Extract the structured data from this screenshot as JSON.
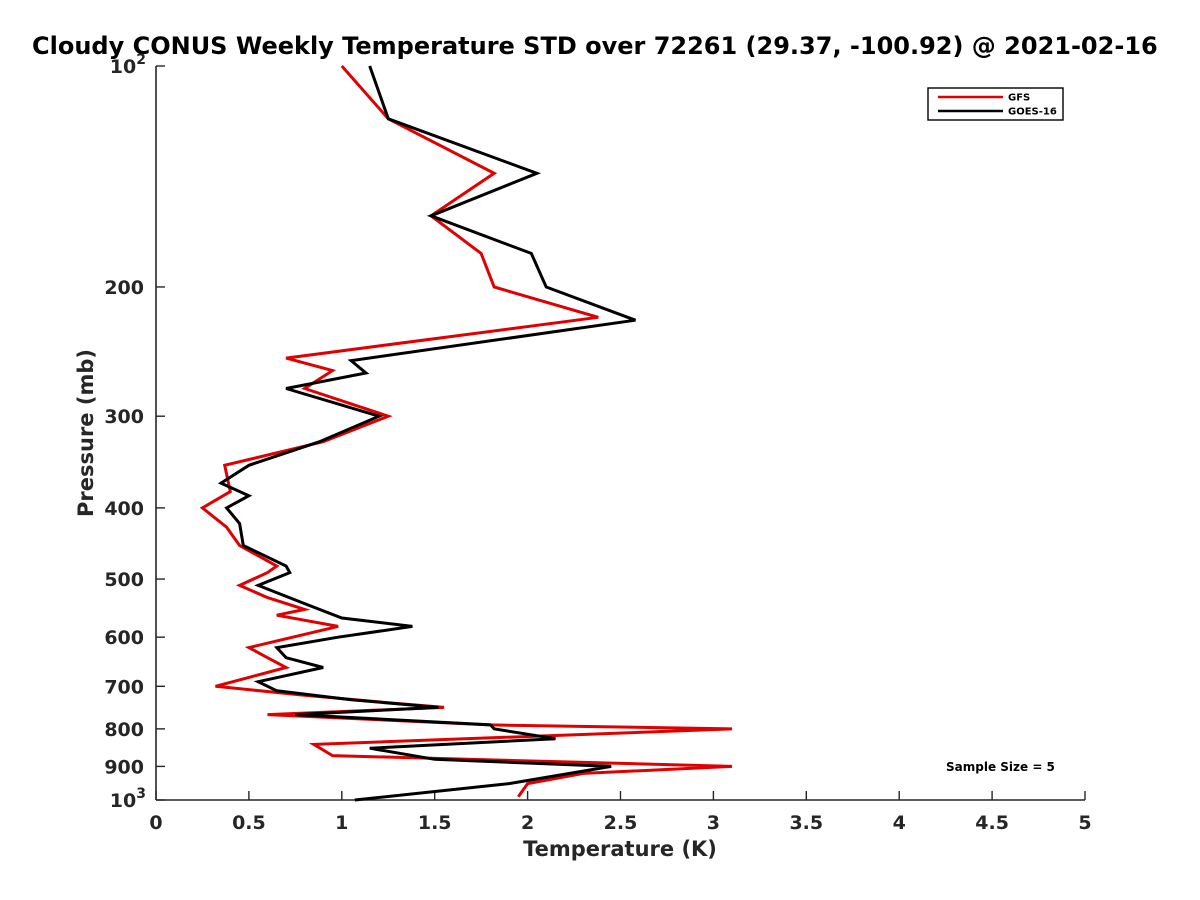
{
  "chart_data": {
    "type": "line",
    "title": "Cloudy CONUS Weekly Temperature STD over 72261 (29.37, -100.92) @ 2021-02-16",
    "xlabel": "Temperature (K)",
    "ylabel": "Pressure (mb)",
    "xlim": [
      0,
      5
    ],
    "ylim": [
      100,
      1000
    ],
    "y_scale": "log",
    "y_reversed": true,
    "grid": false,
    "legend_position": "top-right",
    "x_ticks": [
      {
        "value": 0,
        "label": "0"
      },
      {
        "value": 0.5,
        "label": "0.5"
      },
      {
        "value": 1,
        "label": "1"
      },
      {
        "value": 1.5,
        "label": "1.5"
      },
      {
        "value": 2,
        "label": "2"
      },
      {
        "value": 2.5,
        "label": "2.5"
      },
      {
        "value": 3,
        "label": "3"
      },
      {
        "value": 3.5,
        "label": "3.5"
      },
      {
        "value": 4,
        "label": "4"
      },
      {
        "value": 4.5,
        "label": "4.5"
      },
      {
        "value": 5,
        "label": "5"
      }
    ],
    "y_ticks": [
      {
        "value": 100,
        "label": "10",
        "exp": "2"
      },
      {
        "value": 200,
        "label": "200"
      },
      {
        "value": 300,
        "label": "300"
      },
      {
        "value": 400,
        "label": "400"
      },
      {
        "value": 500,
        "label": "500"
      },
      {
        "value": 600,
        "label": "600"
      },
      {
        "value": 700,
        "label": "700"
      },
      {
        "value": 800,
        "label": "800"
      },
      {
        "value": 900,
        "label": "900"
      },
      {
        "value": 1000,
        "label": "10",
        "exp": "3"
      }
    ],
    "series": [
      {
        "name": "GFS",
        "color": "#e00000",
        "points": [
          [
            1.0,
            100
          ],
          [
            1.25,
            118
          ],
          [
            1.82,
            140
          ],
          [
            1.48,
            160
          ],
          [
            1.75,
            180
          ],
          [
            1.82,
            200
          ],
          [
            2.38,
            220
          ],
          [
            0.7,
            250
          ],
          [
            0.95,
            260
          ],
          [
            0.8,
            275
          ],
          [
            1.25,
            300
          ],
          [
            0.9,
            325
          ],
          [
            0.37,
            350
          ],
          [
            0.4,
            380
          ],
          [
            0.25,
            400
          ],
          [
            0.38,
            425
          ],
          [
            0.45,
            450
          ],
          [
            0.65,
            480
          ],
          [
            0.6,
            490
          ],
          [
            0.45,
            510
          ],
          [
            0.6,
            530
          ],
          [
            0.8,
            550
          ],
          [
            0.65,
            560
          ],
          [
            0.98,
            580
          ],
          [
            0.5,
            620
          ],
          [
            0.6,
            640
          ],
          [
            0.7,
            660
          ],
          [
            0.32,
            700
          ],
          [
            0.8,
            720
          ],
          [
            1.2,
            735
          ],
          [
            1.55,
            748
          ],
          [
            0.6,
            765
          ],
          [
            1.8,
            790
          ],
          [
            3.1,
            800
          ],
          [
            0.85,
            840
          ],
          [
            0.95,
            870
          ],
          [
            3.1,
            900
          ],
          [
            2.3,
            920
          ],
          [
            2.0,
            950
          ],
          [
            1.95,
            990
          ]
        ]
      },
      {
        "name": "GOES-16",
        "color": "#000000",
        "points": [
          [
            1.15,
            100
          ],
          [
            1.25,
            118
          ],
          [
            2.05,
            140
          ],
          [
            1.48,
            160
          ],
          [
            2.02,
            180
          ],
          [
            2.1,
            200
          ],
          [
            2.58,
            222
          ],
          [
            1.05,
            252
          ],
          [
            1.13,
            262
          ],
          [
            0.7,
            275
          ],
          [
            1.2,
            300
          ],
          [
            0.88,
            325
          ],
          [
            0.5,
            350
          ],
          [
            0.35,
            370
          ],
          [
            0.5,
            385
          ],
          [
            0.38,
            400
          ],
          [
            0.45,
            420
          ],
          [
            0.47,
            450
          ],
          [
            0.7,
            480
          ],
          [
            0.72,
            490
          ],
          [
            0.55,
            510
          ],
          [
            0.8,
            540
          ],
          [
            1.0,
            565
          ],
          [
            1.38,
            580
          ],
          [
            0.98,
            600
          ],
          [
            0.65,
            620
          ],
          [
            0.7,
            640
          ],
          [
            0.9,
            660
          ],
          [
            0.55,
            690
          ],
          [
            0.65,
            710
          ],
          [
            1.05,
            730
          ],
          [
            1.52,
            748
          ],
          [
            0.75,
            765
          ],
          [
            1.8,
            790
          ],
          [
            1.82,
            800
          ],
          [
            2.15,
            825
          ],
          [
            1.15,
            850
          ],
          [
            1.5,
            880
          ],
          [
            2.45,
            900
          ],
          [
            1.9,
            950
          ],
          [
            1.07,
            1000
          ]
        ]
      }
    ],
    "annotation": "Sample Size = 5"
  }
}
